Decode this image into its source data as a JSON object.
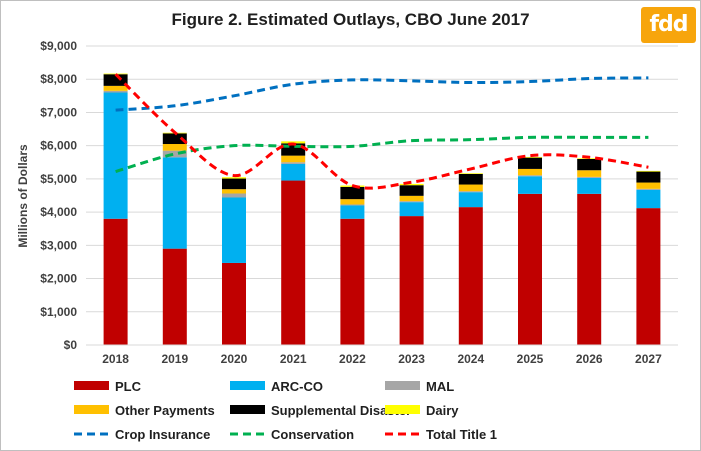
{
  "logo_text": "fdd",
  "chart_data": {
    "type": "bar",
    "title": "Figure 2. Estimated Outlays, CBO June 2017",
    "ylabel": "Millions of Dollars",
    "xlabel": "",
    "ylim": [
      0,
      9000
    ],
    "yticks": [
      "$0",
      "$1,000",
      "$2,000",
      "$3,000",
      "$4,000",
      "$5,000",
      "$6,000",
      "$7,000",
      "$8,000",
      "$9,000"
    ],
    "categories": [
      "2018",
      "2019",
      "2020",
      "2021",
      "2022",
      "2023",
      "2024",
      "2025",
      "2026",
      "2027"
    ],
    "grid": true,
    "legend_position": "bottom",
    "stacked_series": [
      {
        "name": "PLC",
        "color": "#c00000",
        "values": [
          3800,
          2900,
          2470,
          4950,
          3800,
          3880,
          4150,
          4550,
          4550,
          4120
        ]
      },
      {
        "name": "ARC-CO",
        "color": "#00b0f0",
        "values": [
          3800,
          2750,
          1970,
          500,
          400,
          420,
          450,
          530,
          480,
          550
        ]
      },
      {
        "name": "MAL",
        "color": "#a6a6a6",
        "values": [
          50,
          200,
          120,
          50,
          30,
          30,
          30,
          30,
          30,
          30
        ]
      },
      {
        "name": "Other Payments",
        "color": "#ffc000",
        "values": [
          150,
          200,
          130,
          200,
          160,
          160,
          200,
          190,
          200,
          190
        ]
      },
      {
        "name": "Supplemental Disaster",
        "color": "#000000",
        "values": [
          350,
          320,
          320,
          370,
          370,
          320,
          320,
          340,
          340,
          330
        ]
      },
      {
        "name": "Dairy",
        "color": "#ffff00",
        "values": [
          20,
          20,
          40,
          60,
          40,
          40,
          20,
          20,
          20,
          20
        ]
      }
    ],
    "line_series": [
      {
        "name": "Crop Insurance",
        "color": "#0070c0",
        "values": [
          7070,
          7200,
          7500,
          7850,
          7980,
          7950,
          7900,
          7930,
          8020,
          8040
        ]
      },
      {
        "name": "Conservation",
        "color": "#00b050",
        "values": [
          5220,
          5750,
          6000,
          5980,
          5980,
          6150,
          6180,
          6250,
          6250,
          6250
        ]
      },
      {
        "name": "Total Title 1",
        "color": "#ff0000",
        "values": [
          8150,
          6400,
          5100,
          6050,
          4800,
          4900,
          5300,
          5700,
          5650,
          5350
        ]
      }
    ]
  }
}
